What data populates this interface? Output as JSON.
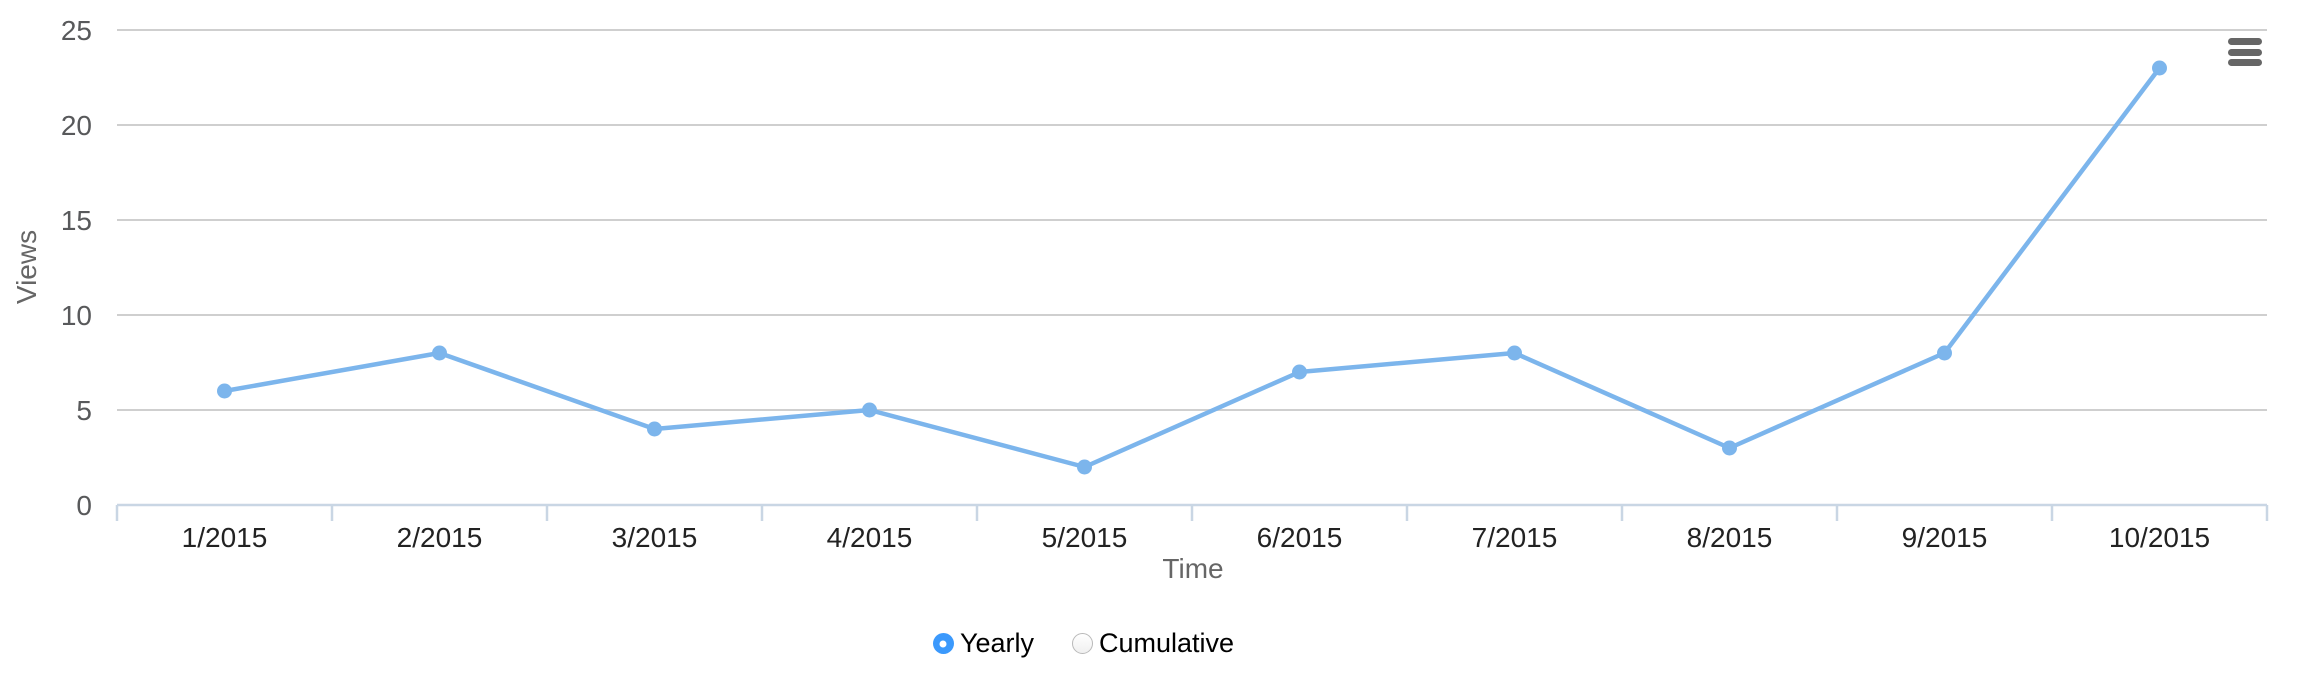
{
  "chart_data": {
    "type": "line",
    "categories": [
      "1/2015",
      "2/2015",
      "3/2015",
      "4/2015",
      "5/2015",
      "6/2015",
      "7/2015",
      "8/2015",
      "9/2015",
      "10/2015"
    ],
    "values": [
      6,
      8,
      4,
      5,
      2,
      7,
      8,
      3,
      8,
      23
    ],
    "title": "",
    "xlabel": "Time",
    "ylabel": "Views",
    "ylim": [
      0,
      25
    ],
    "yticks": [
      0,
      5,
      10,
      15,
      20,
      25
    ],
    "grid": true,
    "legend_position": "none",
    "colors": {
      "line": "#7cb5ec",
      "marker": "#7cb5ec",
      "grid": "#cfcfcf",
      "axis_line": "#c9d6e4",
      "y_tick_label": "#58595b",
      "x_tick_label": "#222222",
      "axis_title": "#666666"
    }
  },
  "export_menu": {
    "icon": "hamburger-menu",
    "color": "#666666"
  },
  "controls": {
    "selected_color": "#3b99fc",
    "options": [
      {
        "label": "Yearly",
        "selected": true
      },
      {
        "label": "Cumulative",
        "selected": false
      }
    ]
  }
}
